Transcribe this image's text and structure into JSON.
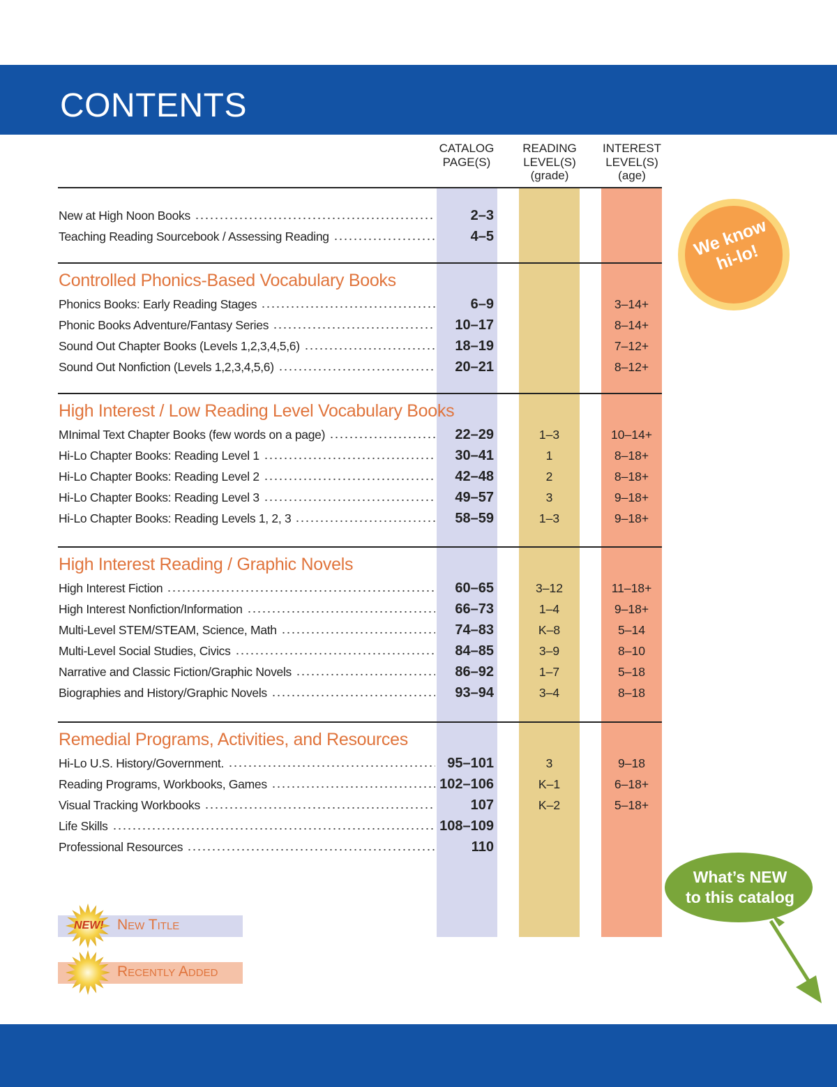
{
  "header": {
    "title": "CONTENTS"
  },
  "columns": [
    [
      "CATALOG",
      "PAGE(S)"
    ],
    [
      "READING",
      "LEVEL(S)",
      "(grade)"
    ],
    [
      "INTEREST",
      "LEVEL(S)",
      "(age)"
    ]
  ],
  "sections": [
    {
      "rows": [
        {
          "title": "New at High Noon Books",
          "pages": "2–3"
        },
        {
          "title": "Teaching Reading Sourcebook / Assessing Reading",
          "pages": "4–5"
        }
      ]
    },
    {
      "heading": "Controlled Phonics-Based Vocabulary Books",
      "rows": [
        {
          "title": "Phonics Books: Early Reading Stages",
          "pages": "6–9",
          "interest": "3–14+"
        },
        {
          "title": "Phonic Books Adventure/Fantasy Series",
          "pages": "10–17",
          "interest": "8–14+"
        },
        {
          "title": "Sound Out Chapter Books (Levels 1,2,3,4,5,6)",
          "pages": "18–19",
          "interest": "7–12+"
        },
        {
          "title": "Sound Out Nonfiction (Levels 1,2,3,4,5,6)",
          "pages": "20–21",
          "interest": "8–12+"
        }
      ]
    },
    {
      "heading": "High Interest / Low Reading Level Vocabulary Books",
      "rows": [
        {
          "title": "MInimal Text Chapter Books (few words on a page)",
          "pages": "22–29",
          "reading": "1–3",
          "interest": "10–14+"
        },
        {
          "title": "Hi-Lo Chapter Books: Reading Level 1",
          "pages": "30–41",
          "reading": "1",
          "interest": "8–18+"
        },
        {
          "title": "Hi-Lo Chapter Books: Reading Level 2",
          "pages": "42–48",
          "reading": "2",
          "interest": "8–18+"
        },
        {
          "title": "Hi-Lo Chapter Books: Reading Level 3",
          "pages": "49–57",
          "reading": "3",
          "interest": "9–18+"
        },
        {
          "title": "Hi-Lo Chapter Books: Reading Levels 1, 2, 3",
          "pages": "58–59",
          "reading": "1–3",
          "interest": "9–18+"
        }
      ]
    },
    {
      "heading": "High Interest Reading / Graphic Novels",
      "rows": [
        {
          "title": "High Interest Fiction",
          "pages": "60–65",
          "reading": "3–12",
          "interest": "11–18+"
        },
        {
          "title": "High Interest Nonfiction/Information",
          "pages": "66–73",
          "reading": "1–4",
          "interest": "9–18+"
        },
        {
          "title": "Multi-Level STEM/STEAM, Science, Math",
          "pages": "74–83",
          "reading": "K–8",
          "interest": "5–14"
        },
        {
          "title": "Multi-Level Social Studies, Civics",
          "pages": "84–85",
          "reading": "3–9",
          "interest": "8–10"
        },
        {
          "title": "Narrative and Classic Fiction/Graphic Novels",
          "pages": "86–92",
          "reading": "1–7",
          "interest": "5–18"
        },
        {
          "title": "Biographies and History/Graphic Novels",
          "pages": "93–94",
          "reading": "3–4",
          "interest": "8–18"
        }
      ]
    },
    {
      "heading": "Remedial Programs, Activities, and Resources",
      "rows": [
        {
          "title": "Hi-Lo U.S. History/Government.",
          "pages": "95–101",
          "reading": "3",
          "interest": "9–18"
        },
        {
          "title": "Reading Programs, Workbooks, Games",
          "pages": "102–106",
          "reading": "K–1",
          "interest": "6–18+"
        },
        {
          "title": "Visual Tracking Workbooks",
          "pages": "107",
          "reading": "K–2",
          "interest": "5–18+"
        },
        {
          "title": "Life Skills",
          "pages": "108–109"
        },
        {
          "title": "Professional Resources",
          "pages": "110"
        }
      ]
    }
  ],
  "legend": {
    "new_badge": "NEW!",
    "new_title": "New Title",
    "recently_added": "Recently Added"
  },
  "badges": {
    "hilo": [
      "We know",
      "hi-lo!"
    ],
    "whats_new": [
      "What’s NEW",
      "to this catalog"
    ]
  }
}
